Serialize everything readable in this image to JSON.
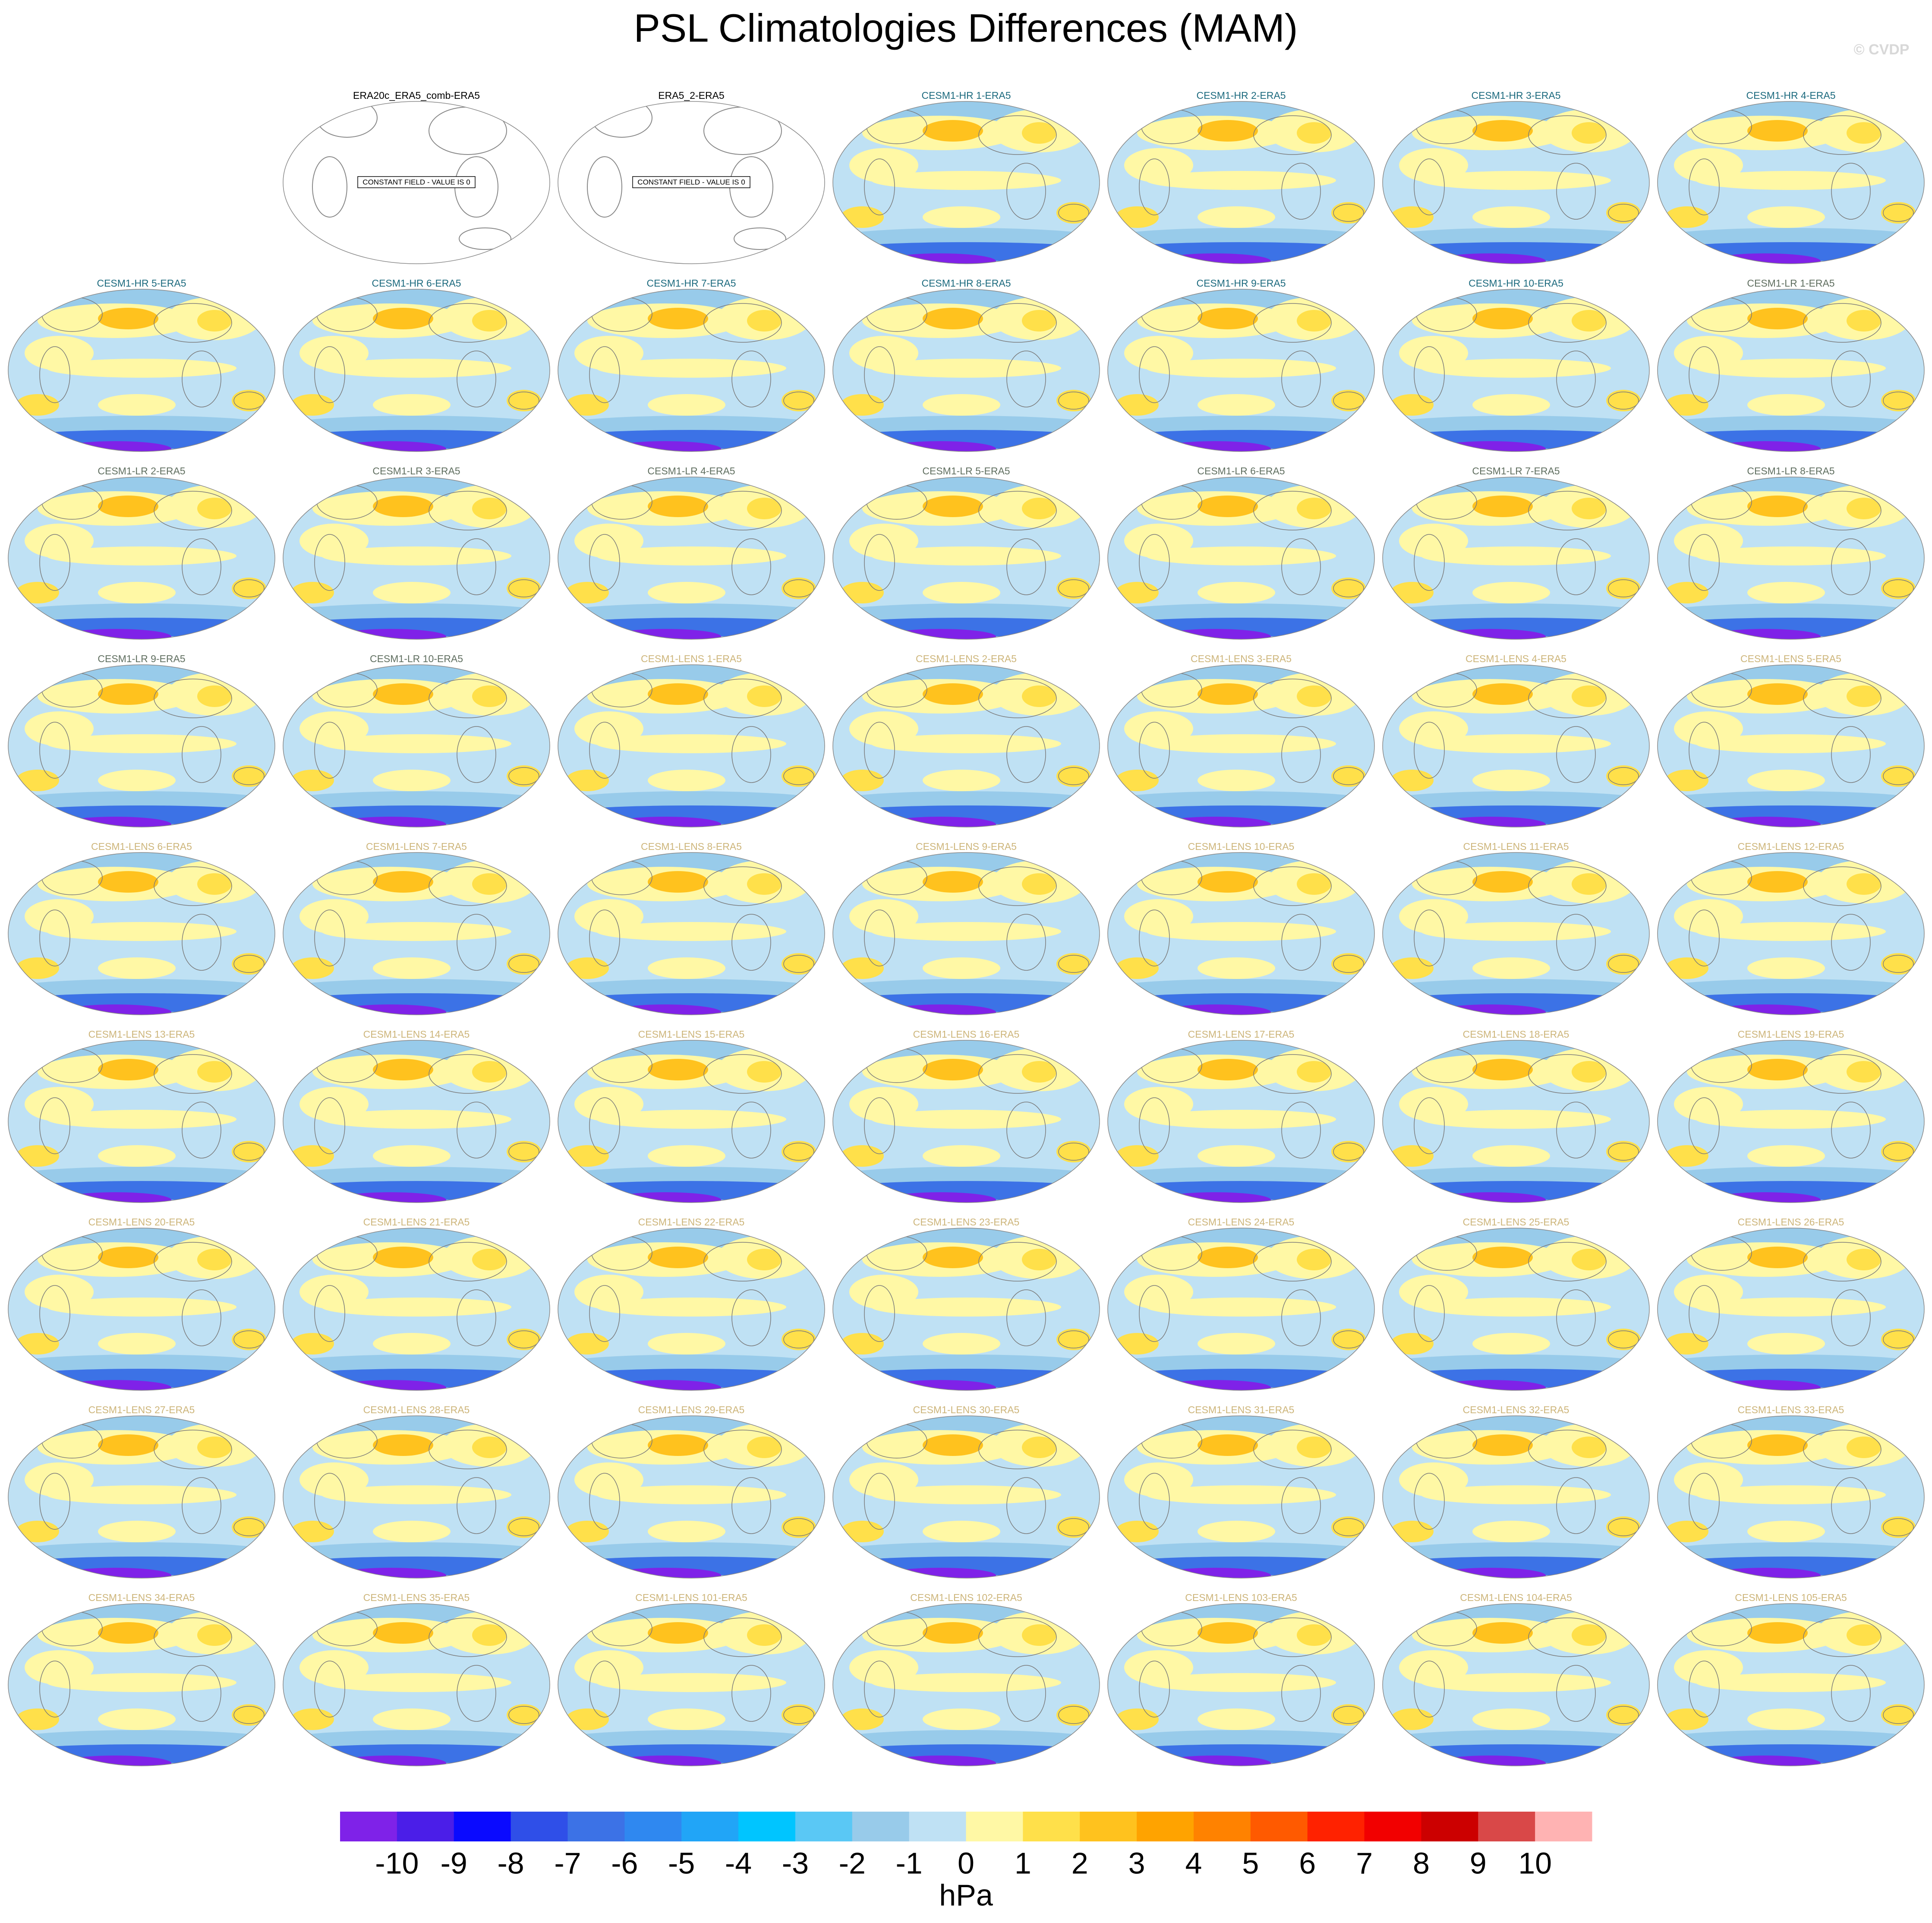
{
  "header": {
    "title": "PSL Climatologies Differences (MAM)",
    "watermark": "© CVDP"
  },
  "panels": [
    {
      "title": "ERA20c_ERA5_comb-ERA5",
      "title_color": "#000000",
      "note": "CONSTANT FIELD - VALUE IS 0"
    },
    {
      "title": "ERA5_2-ERA5",
      "title_color": "#000000",
      "note": "CONSTANT FIELD - VALUE IS 0"
    },
    {
      "title": "CESM1-HR 1-ERA5",
      "title_color": "#1c6a7e"
    },
    {
      "title": "CESM1-HR 2-ERA5",
      "title_color": "#1c6a7e"
    },
    {
      "title": "CESM1-HR 3-ERA5",
      "title_color": "#1c6a7e"
    },
    {
      "title": "CESM1-HR 4-ERA5",
      "title_color": "#1c6a7e"
    },
    {
      "title": "CESM1-HR 5-ERA5",
      "title_color": "#1c6a7e"
    },
    {
      "title": "CESM1-HR 6-ERA5",
      "title_color": "#1c6a7e"
    },
    {
      "title": "CESM1-HR 7-ERA5",
      "title_color": "#1c6a7e"
    },
    {
      "title": "CESM1-HR 8-ERA5",
      "title_color": "#1c6a7e"
    },
    {
      "title": "CESM1-HR 9-ERA5",
      "title_color": "#1c6a7e"
    },
    {
      "title": "CESM1-HR 10-ERA5",
      "title_color": "#1c6a7e"
    },
    {
      "title": "CESM1-LR 1-ERA5",
      "title_color": "#5f6e5f"
    },
    {
      "title": "CESM1-LR 2-ERA5",
      "title_color": "#5f6e5f"
    },
    {
      "title": "CESM1-LR 3-ERA5",
      "title_color": "#5f6e5f"
    },
    {
      "title": "CESM1-LR 4-ERA5",
      "title_color": "#5f6e5f"
    },
    {
      "title": "CESM1-LR 5-ERA5",
      "title_color": "#5f6e5f"
    },
    {
      "title": "CESM1-LR 6-ERA5",
      "title_color": "#5f6e5f"
    },
    {
      "title": "CESM1-LR 7-ERA5",
      "title_color": "#5f6e5f"
    },
    {
      "title": "CESM1-LR 8-ERA5",
      "title_color": "#5f6e5f"
    },
    {
      "title": "CESM1-LR 9-ERA5",
      "title_color": "#5f6e5f"
    },
    {
      "title": "CESM1-LR 10-ERA5",
      "title_color": "#5f6e5f"
    },
    {
      "title": "CESM1-LENS 1-ERA5",
      "title_color": "#cdb57a"
    },
    {
      "title": "CESM1-LENS 2-ERA5",
      "title_color": "#cdb57a"
    },
    {
      "title": "CESM1-LENS 3-ERA5",
      "title_color": "#cdb57a"
    },
    {
      "title": "CESM1-LENS 4-ERA5",
      "title_color": "#cdb57a"
    },
    {
      "title": "CESM1-LENS 5-ERA5",
      "title_color": "#cdb57a"
    },
    {
      "title": "CESM1-LENS 6-ERA5",
      "title_color": "#cdb57a"
    },
    {
      "title": "CESM1-LENS 7-ERA5",
      "title_color": "#cdb57a"
    },
    {
      "title": "CESM1-LENS 8-ERA5",
      "title_color": "#cdb57a"
    },
    {
      "title": "CESM1-LENS 9-ERA5",
      "title_color": "#cdb57a"
    },
    {
      "title": "CESM1-LENS 10-ERA5",
      "title_color": "#cdb57a"
    },
    {
      "title": "CESM1-LENS 11-ERA5",
      "title_color": "#cdb57a"
    },
    {
      "title": "CESM1-LENS 12-ERA5",
      "title_color": "#cdb57a"
    },
    {
      "title": "CESM1-LENS 13-ERA5",
      "title_color": "#cdb57a"
    },
    {
      "title": "CESM1-LENS 14-ERA5",
      "title_color": "#cdb57a"
    },
    {
      "title": "CESM1-LENS 15-ERA5",
      "title_color": "#cdb57a"
    },
    {
      "title": "CESM1-LENS 16-ERA5",
      "title_color": "#cdb57a"
    },
    {
      "title": "CESM1-LENS 17-ERA5",
      "title_color": "#cdb57a"
    },
    {
      "title": "CESM1-LENS 18-ERA5",
      "title_color": "#cdb57a"
    },
    {
      "title": "CESM1-LENS 19-ERA5",
      "title_color": "#cdb57a"
    },
    {
      "title": "CESM1-LENS 20-ERA5",
      "title_color": "#cdb57a"
    },
    {
      "title": "CESM1-LENS 21-ERA5",
      "title_color": "#cdb57a"
    },
    {
      "title": "CESM1-LENS 22-ERA5",
      "title_color": "#cdb57a"
    },
    {
      "title": "CESM1-LENS 23-ERA5",
      "title_color": "#cdb57a"
    },
    {
      "title": "CESM1-LENS 24-ERA5",
      "title_color": "#cdb57a"
    },
    {
      "title": "CESM1-LENS 25-ERA5",
      "title_color": "#cdb57a"
    },
    {
      "title": "CESM1-LENS 26-ERA5",
      "title_color": "#cdb57a"
    },
    {
      "title": "CESM1-LENS 27-ERA5",
      "title_color": "#cdb57a"
    },
    {
      "title": "CESM1-LENS 28-ERA5",
      "title_color": "#cdb57a"
    },
    {
      "title": "CESM1-LENS 29-ERA5",
      "title_color": "#cdb57a"
    },
    {
      "title": "CESM1-LENS 30-ERA5",
      "title_color": "#cdb57a"
    },
    {
      "title": "CESM1-LENS 31-ERA5",
      "title_color": "#cdb57a"
    },
    {
      "title": "CESM1-LENS 32-ERA5",
      "title_color": "#cdb57a"
    },
    {
      "title": "CESM1-LENS 33-ERA5",
      "title_color": "#cdb57a"
    },
    {
      "title": "CESM1-LENS 34-ERA5",
      "title_color": "#cdb57a"
    },
    {
      "title": "CESM1-LENS 35-ERA5",
      "title_color": "#cdb57a"
    },
    {
      "title": "CESM1-LENS 101-ERA5",
      "title_color": "#cdb57a"
    },
    {
      "title": "CESM1-LENS 102-ERA5",
      "title_color": "#cdb57a"
    },
    {
      "title": "CESM1-LENS 103-ERA5",
      "title_color": "#cdb57a"
    },
    {
      "title": "CESM1-LENS 104-ERA5",
      "title_color": "#cdb57a"
    },
    {
      "title": "CESM1-LENS 105-ERA5",
      "title_color": "#cdb57a"
    }
  ],
  "colorbar": {
    "colors": [
      "#7f22e8",
      "#4b1ee8",
      "#0a0aff",
      "#2f4fe8",
      "#3c72e6",
      "#2f88f0",
      "#21a5f7",
      "#00c5ff",
      "#5ac8f5",
      "#98cbea",
      "#bfe1f4",
      "#fff8a5",
      "#ffe04a",
      "#ffc21e",
      "#ffa300",
      "#ff8200",
      "#ff5a00",
      "#ff2200",
      "#f20000",
      "#cc0000",
      "#d94848",
      "#ffb3b3"
    ],
    "ticks": [
      -10,
      -9,
      -8,
      -7,
      -6,
      -5,
      -4,
      -3,
      -2,
      -1,
      0,
      1,
      2,
      3,
      4,
      5,
      6,
      7,
      8,
      9,
      10
    ],
    "unit": "hPa"
  }
}
